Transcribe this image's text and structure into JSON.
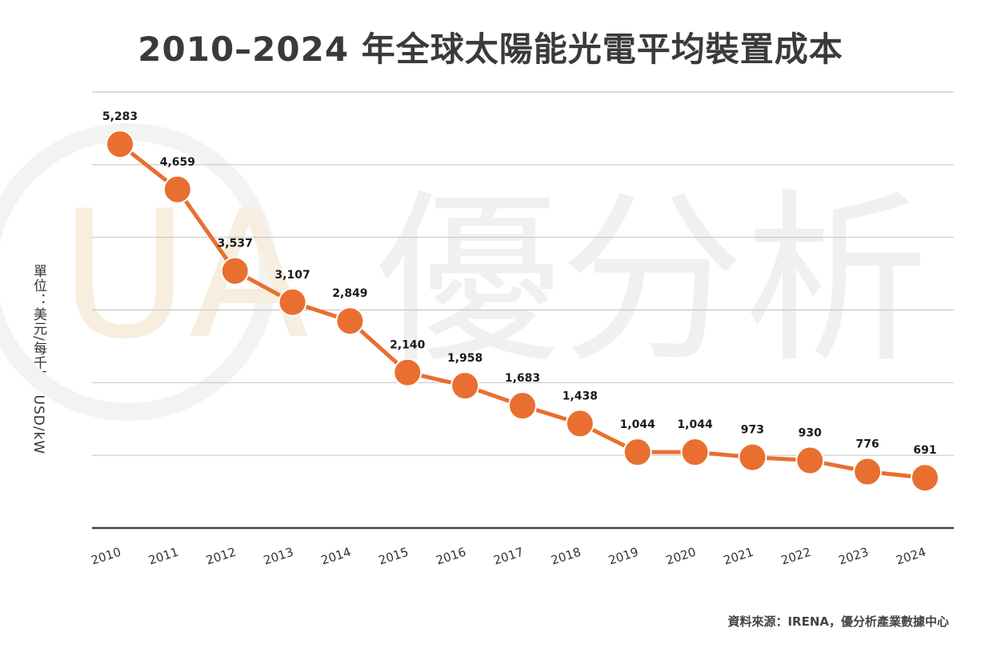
{
  "watermark": {
    "text": "優分析",
    "logo_text": "UA"
  },
  "source_text": "資料來源：IRENA，優分析產業數據中心",
  "chart_data": {
    "type": "line",
    "title": "2010–2024 年全球太陽能光電平均裝置成本",
    "xlabel": "",
    "ylabel": "單位：美元/每千瓦, USD/kW",
    "categories": [
      "2010",
      "2011",
      "2012",
      "2013",
      "2014",
      "2015",
      "2016",
      "2017",
      "2018",
      "2019",
      "2020",
      "2021",
      "2022",
      "2023",
      "2024"
    ],
    "series": [
      {
        "name": "平均裝置成本",
        "color": "#e96f30",
        "values": [
          5283,
          4659,
          3537,
          3107,
          2849,
          2140,
          1958,
          1683,
          1438,
          1044,
          1044,
          973,
          930,
          776,
          691
        ],
        "labels": [
          "5,283",
          "4,659",
          "3,537",
          "3,107",
          "2,849",
          "2,140",
          "1,958",
          "1,683",
          "1,438",
          "1,044",
          "1,044",
          "973",
          "930",
          "776",
          "691"
        ]
      }
    ],
    "ylim": [
      0,
      6000
    ],
    "grid": true,
    "gridlines": [
      1000,
      2000,
      3000,
      4000,
      5000,
      6000
    ]
  }
}
